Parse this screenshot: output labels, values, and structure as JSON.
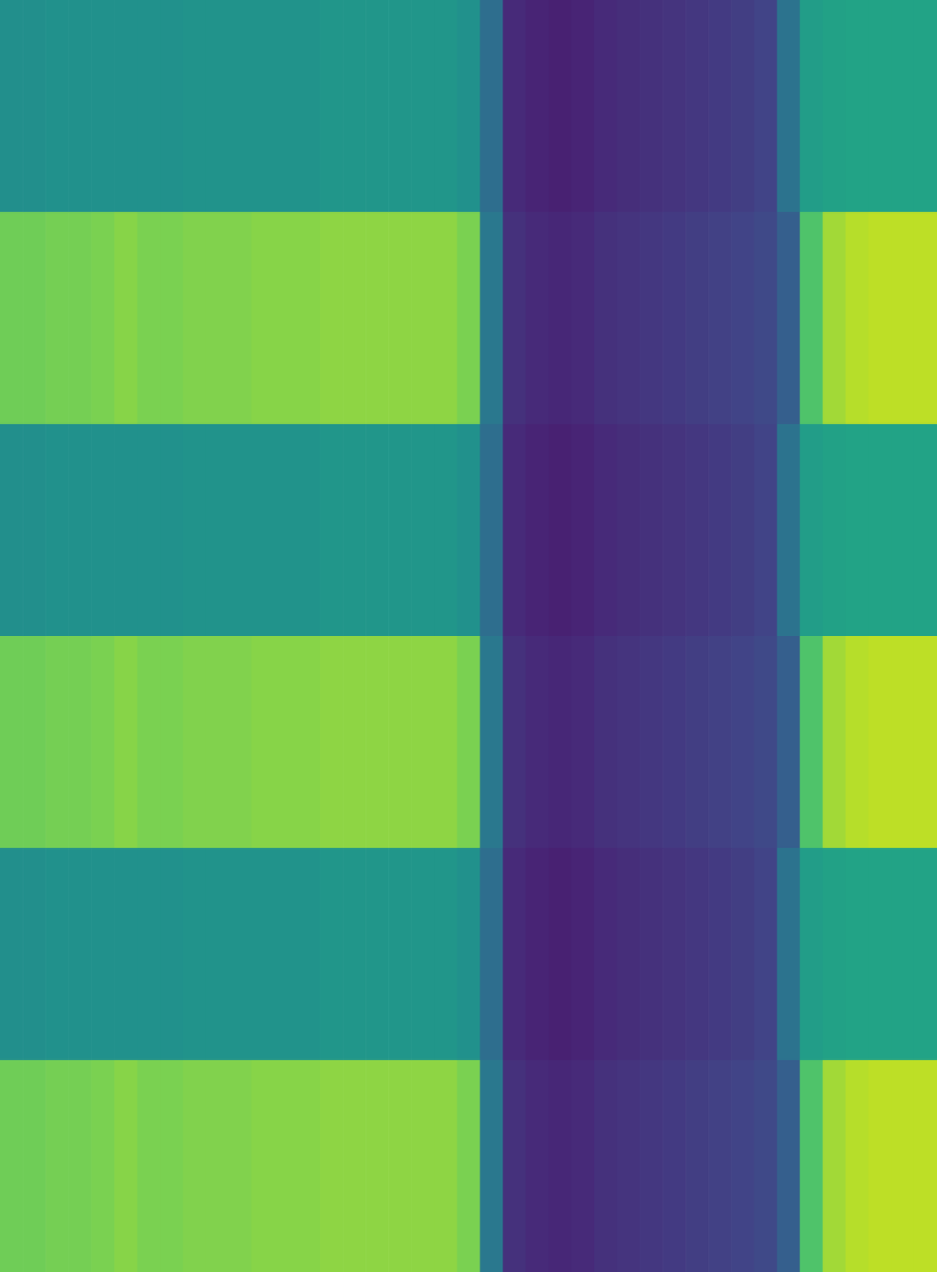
{
  "chart_data": {
    "type": "heatmap",
    "color": "viridis",
    "tick_labels": false,
    "zlim": [
      0,
      1
    ],
    "cells": [
      [
        0.49,
        0.49,
        0.5,
        0.5,
        0.5,
        0.5,
        0.5,
        0.5,
        0.51,
        0.51,
        0.51,
        0.51,
        0.51,
        0.51,
        0.52,
        0.52,
        0.52,
        0.52,
        0.52,
        0.52,
        0.5,
        0.36,
        0.12,
        0.1,
        0.09,
        0.1,
        0.12,
        0.13,
        0.14,
        0.15,
        0.16,
        0.17,
        0.18,
        0.2,
        0.38,
        0.55,
        0.57,
        0.58,
        0.58,
        0.58,
        0.58
      ],
      [
        0.78,
        0.78,
        0.79,
        0.79,
        0.8,
        0.82,
        0.8,
        0.8,
        0.81,
        0.81,
        0.81,
        0.82,
        0.82,
        0.82,
        0.83,
        0.83,
        0.83,
        0.83,
        0.83,
        0.83,
        0.8,
        0.4,
        0.14,
        0.12,
        0.11,
        0.12,
        0.14,
        0.15,
        0.16,
        0.17,
        0.18,
        0.19,
        0.2,
        0.22,
        0.3,
        0.72,
        0.86,
        0.89,
        0.9,
        0.9,
        0.9
      ],
      [
        0.49,
        0.49,
        0.5,
        0.5,
        0.5,
        0.5,
        0.5,
        0.5,
        0.51,
        0.51,
        0.51,
        0.51,
        0.51,
        0.51,
        0.52,
        0.52,
        0.52,
        0.52,
        0.52,
        0.52,
        0.5,
        0.36,
        0.12,
        0.1,
        0.09,
        0.1,
        0.12,
        0.13,
        0.14,
        0.15,
        0.16,
        0.17,
        0.18,
        0.2,
        0.38,
        0.55,
        0.57,
        0.58,
        0.58,
        0.58,
        0.58
      ],
      [
        0.78,
        0.78,
        0.79,
        0.79,
        0.8,
        0.82,
        0.8,
        0.8,
        0.81,
        0.81,
        0.81,
        0.82,
        0.82,
        0.82,
        0.83,
        0.83,
        0.83,
        0.83,
        0.83,
        0.83,
        0.8,
        0.4,
        0.14,
        0.12,
        0.11,
        0.12,
        0.14,
        0.15,
        0.16,
        0.17,
        0.18,
        0.19,
        0.2,
        0.22,
        0.3,
        0.72,
        0.86,
        0.89,
        0.9,
        0.9,
        0.9
      ],
      [
        0.49,
        0.49,
        0.5,
        0.5,
        0.5,
        0.5,
        0.5,
        0.5,
        0.51,
        0.51,
        0.51,
        0.51,
        0.51,
        0.51,
        0.52,
        0.52,
        0.52,
        0.52,
        0.52,
        0.52,
        0.5,
        0.36,
        0.12,
        0.1,
        0.09,
        0.1,
        0.12,
        0.13,
        0.14,
        0.15,
        0.16,
        0.17,
        0.18,
        0.2,
        0.38,
        0.55,
        0.57,
        0.58,
        0.58,
        0.58,
        0.58
      ],
      [
        0.78,
        0.78,
        0.79,
        0.79,
        0.8,
        0.82,
        0.8,
        0.8,
        0.81,
        0.81,
        0.81,
        0.82,
        0.82,
        0.82,
        0.83,
        0.83,
        0.83,
        0.83,
        0.83,
        0.83,
        0.8,
        0.4,
        0.14,
        0.12,
        0.11,
        0.12,
        0.14,
        0.15,
        0.16,
        0.17,
        0.18,
        0.19,
        0.2,
        0.22,
        0.3,
        0.72,
        0.86,
        0.89,
        0.9,
        0.9,
        0.9
      ]
    ]
  }
}
